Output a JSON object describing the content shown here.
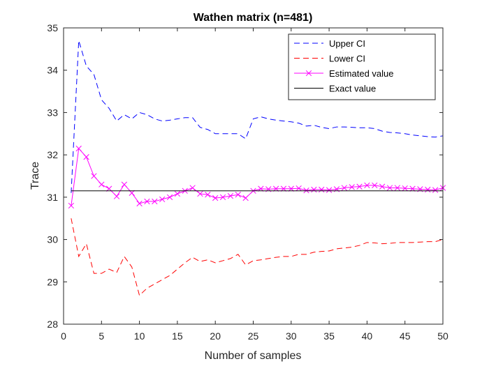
{
  "chart_data": {
    "type": "line",
    "title": "Wathen matrix (n=481)",
    "xlabel": "Number of samples",
    "ylabel": "Trace",
    "xlim": [
      0,
      50
    ],
    "ylim": [
      28,
      35
    ],
    "xticks": [
      "0",
      "5",
      "10",
      "15",
      "20",
      "25",
      "30",
      "35",
      "40",
      "45",
      "50"
    ],
    "yticks": [
      "28",
      "29",
      "30",
      "31",
      "32",
      "33",
      "34",
      "35"
    ],
    "grid": false,
    "legend_position": "top-right",
    "x": [
      1,
      2,
      3,
      4,
      5,
      6,
      7,
      8,
      9,
      10,
      11,
      12,
      13,
      14,
      15,
      16,
      17,
      18,
      19,
      20,
      21,
      22,
      23,
      24,
      25,
      26,
      27,
      28,
      29,
      30,
      31,
      32,
      33,
      34,
      35,
      36,
      37,
      38,
      39,
      40,
      41,
      42,
      43,
      44,
      45,
      46,
      47,
      48,
      49,
      50
    ],
    "series": [
      {
        "name": "Upper CI",
        "color": "#0000ff",
        "style": "dashed",
        "marker": "none",
        "values": [
          31.1,
          34.7,
          34.1,
          33.9,
          33.3,
          33.1,
          32.8,
          32.95,
          32.85,
          33.0,
          32.95,
          32.85,
          32.8,
          32.82,
          32.85,
          32.88,
          32.88,
          32.65,
          32.6,
          32.5,
          32.5,
          32.5,
          32.5,
          32.38,
          32.85,
          32.9,
          32.85,
          32.82,
          32.8,
          32.78,
          32.75,
          32.68,
          32.7,
          32.65,
          32.62,
          32.66,
          32.66,
          32.65,
          32.64,
          32.64,
          32.62,
          32.56,
          32.53,
          32.52,
          32.5,
          32.47,
          32.45,
          32.43,
          32.42,
          32.45
        ]
      },
      {
        "name": "Lower CI",
        "color": "#ff0000",
        "style": "dashed",
        "marker": "none",
        "values": [
          30.5,
          29.6,
          29.9,
          29.2,
          29.2,
          29.3,
          29.22,
          29.6,
          29.35,
          28.68,
          28.85,
          28.95,
          29.05,
          29.15,
          29.3,
          29.45,
          29.58,
          29.48,
          29.52,
          29.45,
          29.5,
          29.55,
          29.65,
          29.4,
          29.5,
          29.52,
          29.55,
          29.58,
          29.6,
          29.6,
          29.65,
          29.65,
          29.7,
          29.72,
          29.73,
          29.78,
          29.8,
          29.82,
          29.86,
          29.93,
          29.92,
          29.9,
          29.91,
          29.93,
          29.93,
          29.93,
          29.94,
          29.95,
          29.95,
          30.0
        ]
      },
      {
        "name": "Estimated value",
        "color": "#ff00ff",
        "style": "solid",
        "marker": "x",
        "values": [
          30.8,
          32.15,
          31.95,
          31.5,
          31.3,
          31.2,
          31.02,
          31.3,
          31.1,
          30.85,
          30.9,
          30.9,
          30.95,
          31.0,
          31.08,
          31.15,
          31.22,
          31.08,
          31.06,
          30.98,
          31.0,
          31.03,
          31.06,
          30.98,
          31.15,
          31.2,
          31.19,
          31.2,
          31.2,
          31.2,
          31.21,
          31.16,
          31.18,
          31.18,
          31.17,
          31.19,
          31.22,
          31.24,
          31.25,
          31.28,
          31.28,
          31.25,
          31.22,
          31.22,
          31.21,
          31.2,
          31.19,
          31.18,
          31.17,
          31.22
        ]
      },
      {
        "name": "Exact value",
        "color": "#000000",
        "style": "solid",
        "marker": "none",
        "values": [
          31.15,
          31.15,
          31.15,
          31.15,
          31.15,
          31.15,
          31.15,
          31.15,
          31.15,
          31.15,
          31.15,
          31.15,
          31.15,
          31.15,
          31.15,
          31.15,
          31.15,
          31.15,
          31.15,
          31.15,
          31.15,
          31.15,
          31.15,
          31.15,
          31.15,
          31.15,
          31.15,
          31.15,
          31.15,
          31.15,
          31.15,
          31.15,
          31.15,
          31.15,
          31.15,
          31.15,
          31.15,
          31.15,
          31.15,
          31.15,
          31.15,
          31.15,
          31.15,
          31.15,
          31.15,
          31.15,
          31.15,
          31.15,
          31.15,
          31.15
        ]
      }
    ]
  }
}
